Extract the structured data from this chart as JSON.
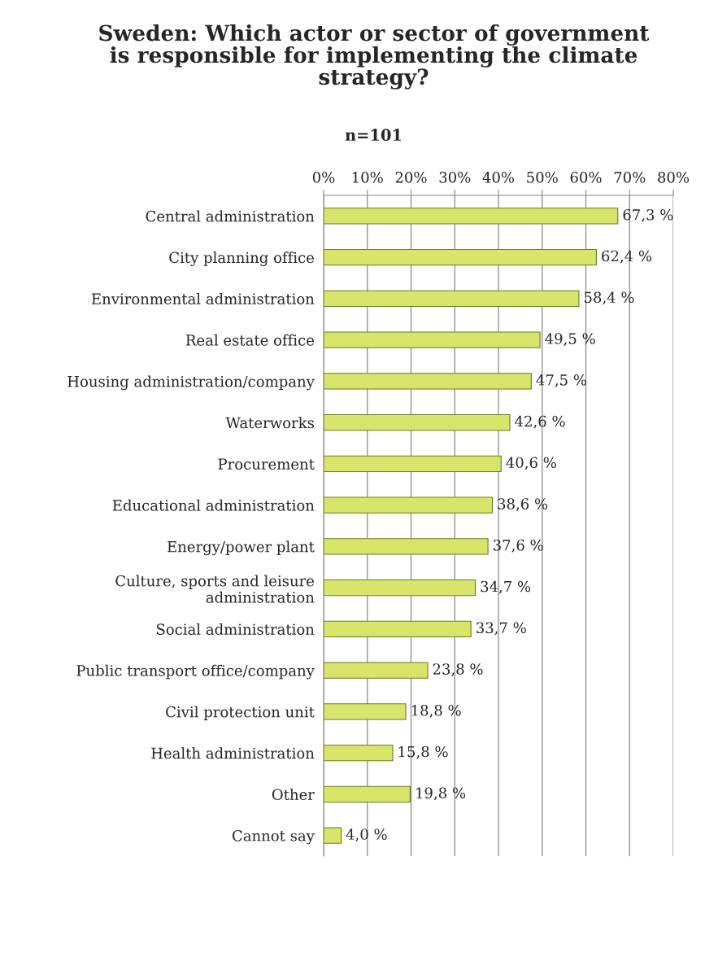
{
  "chart_data": {
    "type": "bar",
    "orientation": "horizontal",
    "title": "Sweden: Which actor or sector of government\nis responsible for implementing the climate\nstrategy?",
    "subtitle": "n=101",
    "categories": [
      "Central administration",
      "City planning office",
      "Environmental administration",
      "Real estate office",
      "Housing administration/company",
      "Waterworks",
      "Procurement",
      "Educational administration",
      "Energy/power plant",
      "Culture, sports and leisure\nadministration",
      "Social administration",
      "Public transport office/company",
      "Civil protection unit",
      "Health administration",
      "Other",
      "Cannot say"
    ],
    "values": [
      67.3,
      62.4,
      58.4,
      49.5,
      47.5,
      42.6,
      40.6,
      38.6,
      37.6,
      34.7,
      33.7,
      23.8,
      18.8,
      15.8,
      19.8,
      4.0
    ],
    "value_labels": [
      "67,3 %",
      "62,4 %",
      "58,4 %",
      "49,5 %",
      "47,5 %",
      "42,6 %",
      "40,6 %",
      "38,6 %",
      "37,6 %",
      "34,7 %",
      "33,7 %",
      "23,8 %",
      "18,8 %",
      "15,8 %",
      "19,8 %",
      "4,0 %"
    ],
    "color": "#d7e66b",
    "xlim": [
      0,
      80
    ],
    "xticks": [
      {
        "value": 0,
        "label": "0%"
      },
      {
        "value": 10,
        "label": "10%"
      },
      {
        "value": 20,
        "label": "20%"
      },
      {
        "value": 30,
        "label": "30%"
      },
      {
        "value": 40,
        "label": "40%"
      },
      {
        "value": 50,
        "label": "50%"
      },
      {
        "value": 60,
        "label": "60%"
      },
      {
        "value": 70,
        "label": "70%"
      },
      {
        "value": 80,
        "label": "80%"
      }
    ],
    "grid": "x",
    "legend": false
  }
}
